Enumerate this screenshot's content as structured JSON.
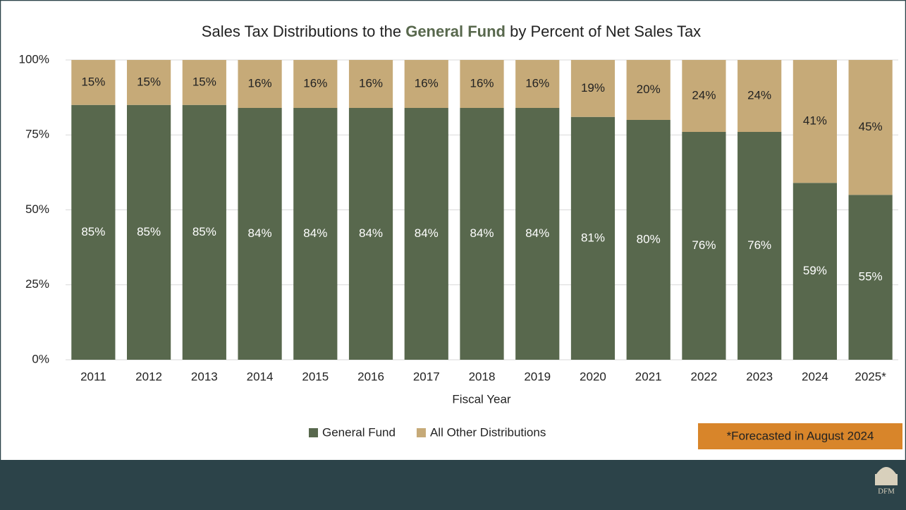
{
  "chart_data": {
    "type": "stacked-bar",
    "title": [
      "Sales Tax Distributions to the ",
      "General Fund",
      " by Percent of Net Sales Tax"
    ],
    "categories": [
      "2011",
      "2012",
      "2013",
      "2014",
      "2015",
      "2016",
      "2017",
      "2018",
      "2019",
      "2020",
      "2021",
      "2022",
      "2023",
      "2024",
      "2025*"
    ],
    "x_label": "Fiscal Year",
    "series": [
      {
        "name": "General Fund",
        "color": "#58684d",
        "values": [
          85,
          85,
          85,
          84,
          84,
          84,
          84,
          84,
          84,
          81,
          80,
          76,
          76,
          59,
          55
        ],
        "value_labels": [
          "85%",
          "85%",
          "85%",
          "84%",
          "84%",
          "84%",
          "84%",
          "84%",
          "84%",
          "81%",
          "80%",
          "76%",
          "76%",
          "59%",
          "55%"
        ]
      },
      {
        "name": "All Other Distributions",
        "color": "#c6aa78",
        "values": [
          15,
          15,
          15,
          16,
          16,
          16,
          16,
          16,
          16,
          19,
          20,
          24,
          24,
          41,
          45
        ],
        "value_labels": [
          "15%",
          "15%",
          "15%",
          "16%",
          "16%",
          "16%",
          "16%",
          "16%",
          "16%",
          "19%",
          "20%",
          "24%",
          "24%",
          "41%",
          "45%"
        ]
      }
    ],
    "ylim": [
      0,
      100
    ],
    "yticks": [
      {
        "value": 0,
        "label": "0%"
      },
      {
        "value": 25,
        "label": "25%"
      },
      {
        "value": 50,
        "label": "50%"
      },
      {
        "value": 75,
        "label": "75%"
      },
      {
        "value": 100,
        "label": "100%"
      }
    ],
    "grid": true,
    "legend": "bottom",
    "note": "*Forecasted in August 2024"
  },
  "footer": {
    "logo": "DFM"
  }
}
